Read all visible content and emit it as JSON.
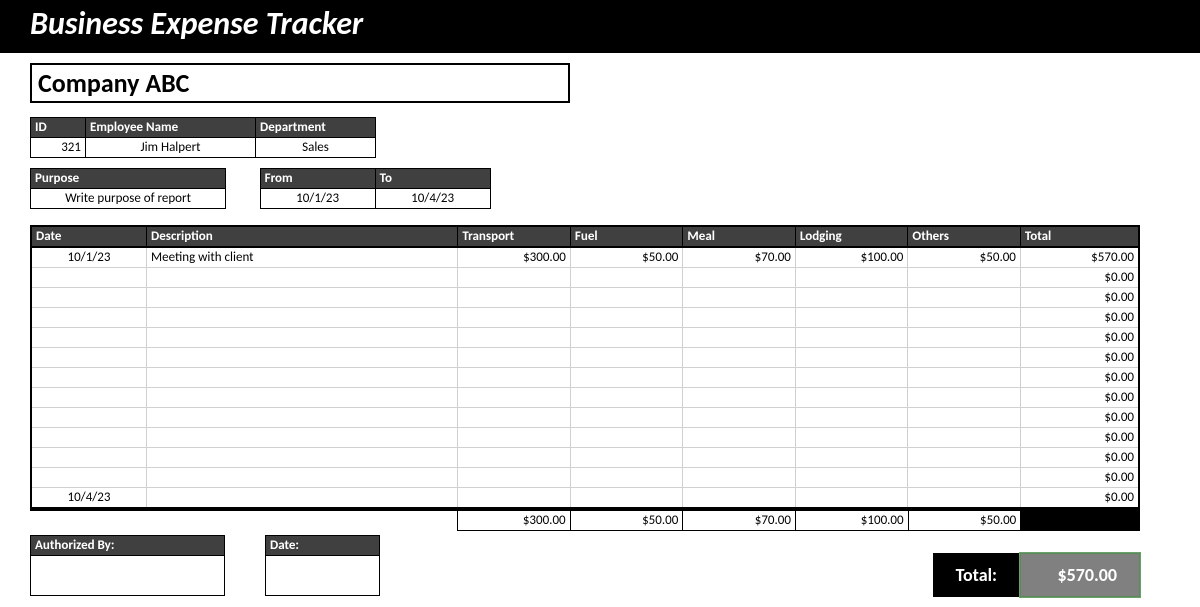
{
  "header": {
    "title": "Business Expense Tracker"
  },
  "company": {
    "name": "Company ABC"
  },
  "employee": {
    "headers": {
      "id": "ID",
      "name": "Employee Name",
      "dept": "Department"
    },
    "id": "321",
    "name": "Jim Halpert",
    "dept": "Sales"
  },
  "purpose": {
    "label": "Purpose",
    "value": "Write purpose of report",
    "from_label": "From",
    "from_value": "10/1/23",
    "to_label": "To",
    "to_value": "10/4/23"
  },
  "expense": {
    "columns": {
      "date": "Date",
      "desc": "Description",
      "transport": "Transport",
      "fuel": "Fuel",
      "meal": "Meal",
      "lodging": "Lodging",
      "others": "Others",
      "total": "Total"
    },
    "rows": [
      {
        "date": "10/1/23",
        "desc": "Meeting with client",
        "transport": "$300.00",
        "fuel": "$50.00",
        "meal": "$70.00",
        "lodging": "$100.00",
        "others": "$50.00",
        "total": "$570.00"
      },
      {
        "date": "",
        "desc": "",
        "transport": "",
        "fuel": "",
        "meal": "",
        "lodging": "",
        "others": "",
        "total": "$0.00"
      },
      {
        "date": "",
        "desc": "",
        "transport": "",
        "fuel": "",
        "meal": "",
        "lodging": "",
        "others": "",
        "total": "$0.00"
      },
      {
        "date": "",
        "desc": "",
        "transport": "",
        "fuel": "",
        "meal": "",
        "lodging": "",
        "others": "",
        "total": "$0.00"
      },
      {
        "date": "",
        "desc": "",
        "transport": "",
        "fuel": "",
        "meal": "",
        "lodging": "",
        "others": "",
        "total": "$0.00"
      },
      {
        "date": "",
        "desc": "",
        "transport": "",
        "fuel": "",
        "meal": "",
        "lodging": "",
        "others": "",
        "total": "$0.00"
      },
      {
        "date": "",
        "desc": "",
        "transport": "",
        "fuel": "",
        "meal": "",
        "lodging": "",
        "others": "",
        "total": "$0.00"
      },
      {
        "date": "",
        "desc": "",
        "transport": "",
        "fuel": "",
        "meal": "",
        "lodging": "",
        "others": "",
        "total": "$0.00"
      },
      {
        "date": "",
        "desc": "",
        "transport": "",
        "fuel": "",
        "meal": "",
        "lodging": "",
        "others": "",
        "total": "$0.00"
      },
      {
        "date": "",
        "desc": "",
        "transport": "",
        "fuel": "",
        "meal": "",
        "lodging": "",
        "others": "",
        "total": "$0.00"
      },
      {
        "date": "",
        "desc": "",
        "transport": "",
        "fuel": "",
        "meal": "",
        "lodging": "",
        "others": "",
        "total": "$0.00"
      },
      {
        "date": "",
        "desc": "",
        "transport": "",
        "fuel": "",
        "meal": "",
        "lodging": "",
        "others": "",
        "total": "$0.00"
      },
      {
        "date": "10/4/23",
        "desc": "",
        "transport": "",
        "fuel": "",
        "meal": "",
        "lodging": "",
        "others": "",
        "total": "$0.00"
      }
    ],
    "subtotals": {
      "transport": "$300.00",
      "fuel": "$50.00",
      "meal": "$70.00",
      "lodging": "$100.00",
      "others": "$50.00"
    }
  },
  "footer": {
    "authorized_label": "Authorized By:",
    "date_label": "Date:",
    "total_label": "Total:",
    "total_value": "$570.00"
  },
  "style": {
    "header_bg": "#000000",
    "dark_cell_bg": "#404040",
    "grand_total_val_bg": "#808080",
    "grid_light": "#d0d0d0",
    "border": "#000000",
    "white": "#ffffff"
  }
}
